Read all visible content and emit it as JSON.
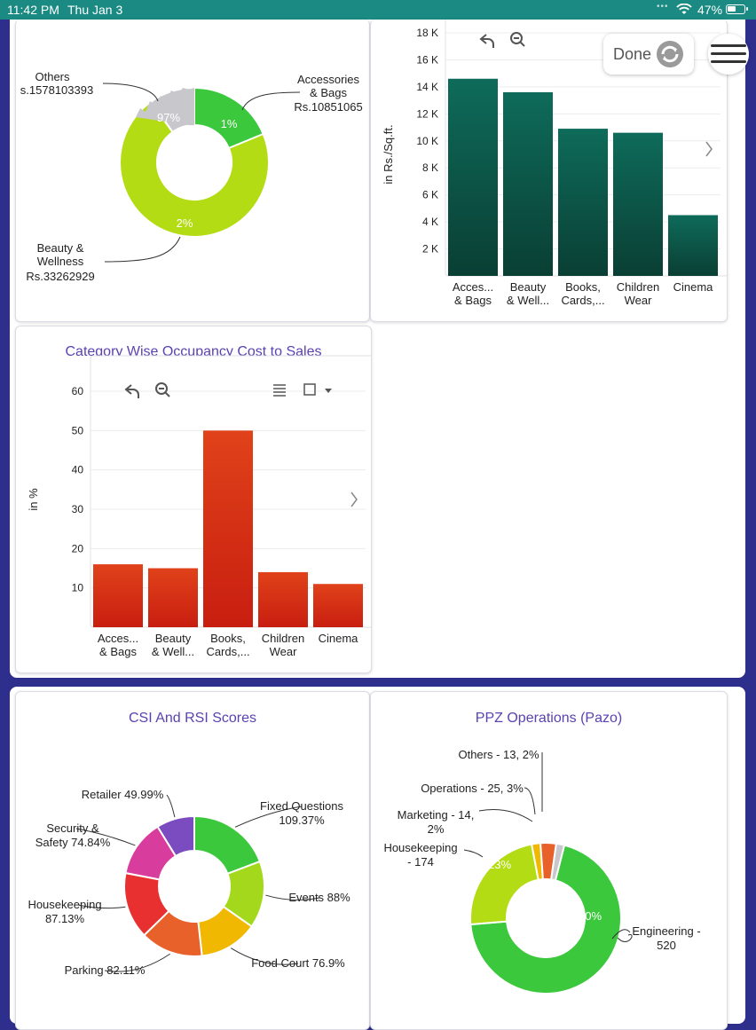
{
  "status_bar": {
    "time": "11:42 PM",
    "date": "Thu Jan 3",
    "battery": "47%"
  },
  "toolbar": {
    "done_label": "Done"
  },
  "top_left_pie": {
    "labels": [
      {
        "name": "Others",
        "value": "s.1578103393"
      },
      {
        "name": "Accessories\n& Bags",
        "value": "Rs.10851065"
      },
      {
        "name": "Beauty &\nWellness",
        "value": "Rs.33262929"
      }
    ],
    "percent_labels": [
      "97%",
      "1%",
      "2%"
    ],
    "colors": {
      "others": "#c8c8cc",
      "accessories": "#3cc83c",
      "beauty": "#b4dc14"
    }
  },
  "sales_per_sqft_chart": {
    "ylabel": "in Rs./Sq.ft.",
    "color": "#0e6b5a",
    "chart_data": {
      "type": "bar",
      "categories": [
        "Acces...\n& Bags",
        "Beauty\n& Well...",
        "Books,\nCards,...",
        "Children\nWear",
        "Cinema"
      ],
      "values": [
        14.6,
        13.6,
        10.9,
        10.6,
        4.5
      ],
      "ylabel": "in Rs./Sq.ft.",
      "ylim": [
        0,
        18
      ],
      "ticks": [
        "2 K",
        "4 K",
        "6 K",
        "8 K",
        "10 K",
        "12 K",
        "14 K",
        "16 K",
        "18 K"
      ]
    }
  },
  "occupancy_chart": {
    "title": "Category Wise Occupancy Cost to Sales",
    "ylabel": "in %",
    "color": "#e0421a",
    "chart_data": {
      "type": "bar",
      "title": "Category Wise Occupancy Cost to Sales",
      "categories": [
        "Acces...\n& Bags",
        "Beauty\n& Well...",
        "Books,\nCards,...",
        "Children\nWear",
        "Cinema"
      ],
      "values": [
        16,
        15,
        50,
        14,
        11
      ],
      "ylabel": "in %",
      "ylim": [
        0,
        60
      ],
      "ticks": [
        "10",
        "20",
        "30",
        "40",
        "50",
        "60"
      ]
    }
  },
  "csi_chart": {
    "title": "CSI And RSI Scores",
    "chart_data": {
      "type": "pie",
      "title": "CSI And RSI Scores",
      "slices": [
        {
          "label": "Fixed Questions\n109.37%",
          "value": 109.37,
          "color": "#3cc83c"
        },
        {
          "label": "Events 88%",
          "value": 88,
          "color": "#a4d81c"
        },
        {
          "label": "Food Court 76.9%",
          "value": 76.9,
          "color": "#f0b800"
        },
        {
          "label": "Parking 82.11%",
          "value": 82.11,
          "color": "#e8602a"
        },
        {
          "label": "Housekeeping\n87.13%",
          "value": 87.13,
          "color": "#e83030"
        },
        {
          "label": "Security &\nSafety 74.84%",
          "value": 74.84,
          "color": "#d83c9c"
        },
        {
          "label": "Retailer 49.99%",
          "value": 49.99,
          "color": "#7a4cc0"
        }
      ]
    }
  },
  "ppz_chart": {
    "title": "PPZ Operations (Pazo)",
    "chart_data": {
      "type": "pie",
      "title": "PPZ Operations (Pazo)",
      "slices": [
        {
          "label": "Engineering -\n520",
          "value": 520,
          "pct": "70%",
          "color": "#3cc83c"
        },
        {
          "label": "Housekeeping\n- 174",
          "value": 174,
          "pct": "23%",
          "color": "#b4dc14"
        },
        {
          "label": "Marketing - 14,\n2%",
          "value": 14,
          "pct": "",
          "color": "#f0b800"
        },
        {
          "label": "Operations - 25, 3%",
          "value": 25,
          "pct": "",
          "color": "#e8602a"
        },
        {
          "label": "Others - 13, 2%",
          "value": 13,
          "pct": "",
          "color": "#c8c8cc"
        }
      ]
    }
  }
}
